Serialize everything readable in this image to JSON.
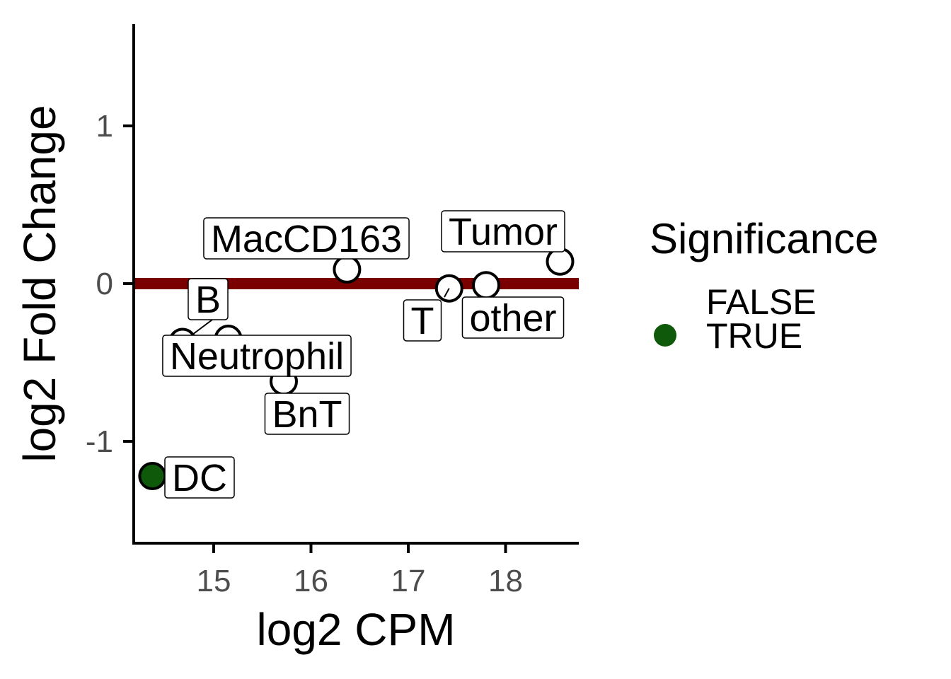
{
  "chart_data": {
    "type": "scatter",
    "xlabel": "log2 CPM",
    "ylabel": "log2 Fold Change",
    "xlim": [
      14.2,
      18.8
    ],
    "ylim": [
      -1.65,
      1.65
    ],
    "x_ticks": [
      15,
      16,
      17,
      18
    ],
    "y_ticks": [
      1,
      0,
      -1
    ],
    "reference_line": {
      "y": 0,
      "color": "#7a0000"
    },
    "points": [
      {
        "label": "DC",
        "x": 14.37,
        "y": -1.22,
        "significant": true
      },
      {
        "label": "B",
        "x": 14.68,
        "y": -0.37,
        "significant": false
      },
      {
        "label": "Neutrophil",
        "x": 15.15,
        "y": -0.35,
        "significant": false
      },
      {
        "label": "BnT",
        "x": 15.72,
        "y": -0.62,
        "significant": false
      },
      {
        "label": "MacCD163",
        "x": 16.37,
        "y": 0.09,
        "significant": false
      },
      {
        "label": "T",
        "x": 17.42,
        "y": -0.03,
        "significant": false
      },
      {
        "label": "other",
        "x": 17.8,
        "y": -0.01,
        "significant": false
      },
      {
        "label": "Tumor",
        "x": 18.56,
        "y": 0.14,
        "significant": false
      }
    ],
    "legend": {
      "title": "Significance",
      "placement": "right",
      "entries": [
        {
          "label": "FALSE",
          "color": "#ffffff"
        },
        {
          "label": "TRUE",
          "color": "#0e5a0a"
        }
      ]
    }
  }
}
